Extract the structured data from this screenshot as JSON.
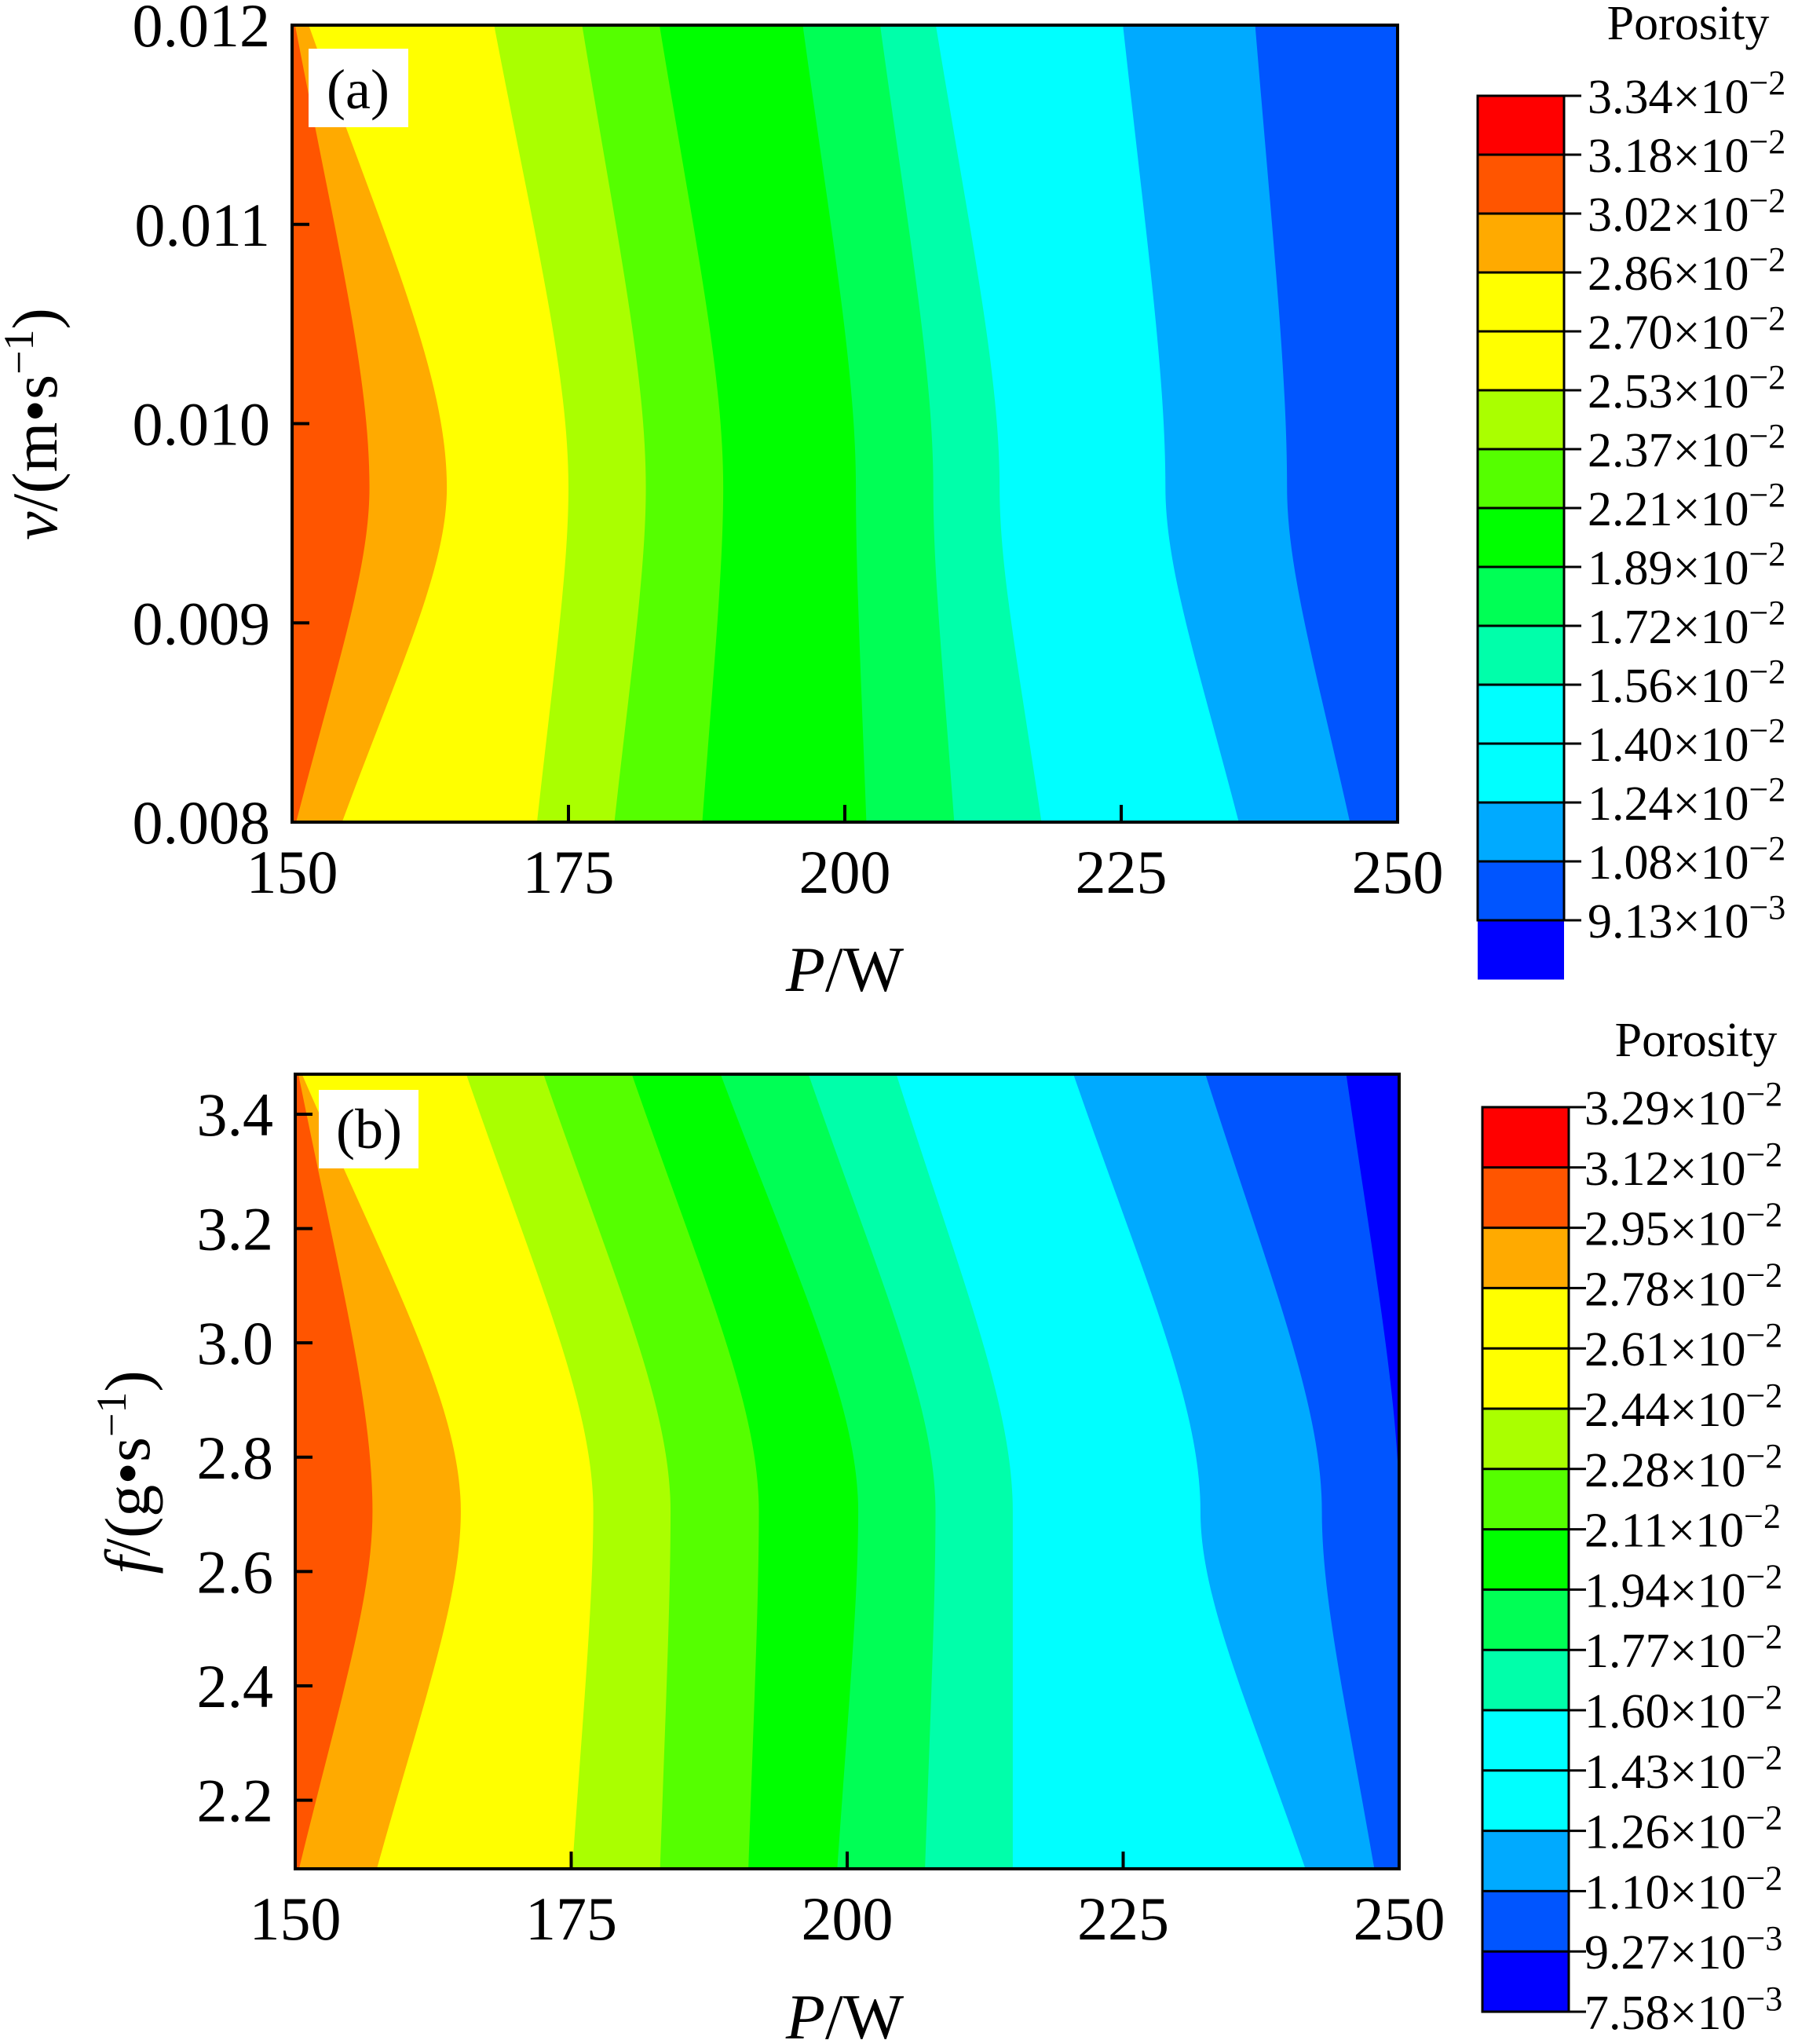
{
  "chart_data": [
    {
      "type": "contour",
      "panel_label": "(a)",
      "xlabel_italic": "P",
      "xlabel_unit": "/W",
      "ylabel": "v/(m•s⁻¹)",
      "ylabel_parts": {
        "var": "v",
        "open": "/(m•s",
        "sup": "−1",
        "close": ")"
      },
      "x_ticks": [
        "150",
        "175",
        "200",
        "225",
        "250"
      ],
      "x_tick_values": [
        150,
        175,
        200,
        225,
        250
      ],
      "xlim": [
        150,
        250
      ],
      "y_ticks": [
        "0.008",
        "0.009",
        "0.010",
        "0.011",
        "0.012"
      ],
      "y_tick_values": [
        0.008,
        0.009,
        0.01,
        0.011,
        0.012
      ],
      "ylim": [
        0.008,
        0.012
      ],
      "colorbar": {
        "title": "Porosity",
        "labels": [
          {
            "mant": "3.34",
            "exp": "−2"
          },
          {
            "mant": "3.18",
            "exp": "−2"
          },
          {
            "mant": "3.02",
            "exp": "−2"
          },
          {
            "mant": "2.86",
            "exp": "−2"
          },
          {
            "mant": "2.70",
            "exp": "−2"
          },
          {
            "mant": "2.53",
            "exp": "−2"
          },
          {
            "mant": "2.37",
            "exp": "−2"
          },
          {
            "mant": "2.21",
            "exp": "−2"
          },
          {
            "mant": "1.89",
            "exp": "−2"
          },
          {
            "mant": "1.72",
            "exp": "−2"
          },
          {
            "mant": "1.56",
            "exp": "−2"
          },
          {
            "mant": "1.40",
            "exp": "−2"
          },
          {
            "mant": "1.24",
            "exp": "−2"
          },
          {
            "mant": "1.08",
            "exp": "−2"
          },
          {
            "mant": "9.13",
            "exp": "−3"
          }
        ],
        "levels": [
          0.0334,
          0.0318,
          0.0302,
          0.0286,
          0.027,
          0.0253,
          0.0237,
          0.0221,
          0.0189,
          0.0172,
          0.0156,
          0.014,
          0.0124,
          0.0108,
          0.00913
        ],
        "colors": [
          "#ff0000",
          "#ff5500",
          "#ffaa00",
          "#ffff00",
          "#ffff00",
          "#aaff00",
          "#55ff00",
          "#00ff00",
          "#00ff55",
          "#00ffaa",
          "#00ffff",
          "#00ffff",
          "#00aaff",
          "#0055ff",
          "#0000ff"
        ]
      },
      "bands": [
        {
          "x_at_vmid": 150,
          "x_at_vtop": 150,
          "x_at_vbot": 150,
          "color": "#ff5500"
        },
        {
          "x_at_vmid": 157,
          "x_at_vtop": 150,
          "x_at_vbot": 150,
          "color": "#ffaa00"
        },
        {
          "x_at_vmid": 164,
          "x_at_vtop": 151,
          "x_at_vbot": 154,
          "color": "#ffff00"
        },
        {
          "x_at_vmid": 175,
          "x_at_vtop": 168,
          "x_at_vbot": 172,
          "color": "#aaff00"
        },
        {
          "x_at_vmid": 182,
          "x_at_vtop": 176,
          "x_at_vbot": 179,
          "color": "#55ff00"
        },
        {
          "x_at_vmid": 189,
          "x_at_vtop": 183,
          "x_at_vbot": 187,
          "color": "#00ff00"
        },
        {
          "x_at_vmid": 201,
          "x_at_vtop": 196,
          "x_at_vbot": 202,
          "color": "#00ff55"
        },
        {
          "x_at_vmid": 208,
          "x_at_vtop": 203,
          "x_at_vbot": 210,
          "color": "#00ffaa"
        },
        {
          "x_at_vmid": 214,
          "x_at_vtop": 208,
          "x_at_vbot": 218,
          "color": "#00ffff"
        },
        {
          "x_at_vmid": 229,
          "x_at_vtop": 225,
          "x_at_vbot": 236,
          "color": "#00aaff"
        },
        {
          "x_at_vmid": 240,
          "x_at_vtop": 237,
          "x_at_vbot": 246,
          "color": "#0055ff"
        },
        {
          "x_at_vmid": 250,
          "x_at_vtop": 250,
          "x_at_vbot": 251,
          "color": "#0000ff"
        }
      ]
    },
    {
      "type": "contour",
      "panel_label": "(b)",
      "xlabel_italic": "P",
      "xlabel_unit": "/W",
      "ylabel": "f/(g•s⁻¹)",
      "ylabel_parts": {
        "var": "f",
        "open": "/(g•s",
        "sup": "−1",
        "close": ")"
      },
      "x_ticks": [
        "150",
        "175",
        "200",
        "225",
        "250"
      ],
      "x_tick_values": [
        150,
        175,
        200,
        225,
        250
      ],
      "xlim": [
        150,
        250
      ],
      "y_ticks": [
        "2.2",
        "2.4",
        "2.6",
        "2.8",
        "3.0",
        "3.2",
        "3.4"
      ],
      "y_tick_values": [
        2.2,
        2.4,
        2.6,
        2.8,
        3.0,
        3.2,
        3.4
      ],
      "ylim": [
        2.08,
        3.47
      ],
      "colorbar": {
        "title": "Porosity",
        "labels": [
          {
            "mant": "3.29",
            "exp": "−2"
          },
          {
            "mant": "3.12",
            "exp": "−2"
          },
          {
            "mant": "2.95",
            "exp": "−2"
          },
          {
            "mant": "2.78",
            "exp": "−2"
          },
          {
            "mant": "2.61",
            "exp": "−2"
          },
          {
            "mant": "2.44",
            "exp": "−2"
          },
          {
            "mant": "2.28",
            "exp": "−2"
          },
          {
            "mant": "2.11",
            "exp": "−2"
          },
          {
            "mant": "1.94",
            "exp": "−2"
          },
          {
            "mant": "1.77",
            "exp": "−2"
          },
          {
            "mant": "1.60",
            "exp": "−2"
          },
          {
            "mant": "1.43",
            "exp": "−2"
          },
          {
            "mant": "1.26",
            "exp": "−2"
          },
          {
            "mant": "1.10",
            "exp": "−2"
          },
          {
            "mant": "9.27",
            "exp": "−3"
          },
          {
            "mant": "7.58",
            "exp": "−3"
          }
        ],
        "levels": [
          0.0329,
          0.0312,
          0.0295,
          0.0278,
          0.0261,
          0.0244,
          0.0228,
          0.0211,
          0.0194,
          0.0177,
          0.016,
          0.0143,
          0.0126,
          0.011,
          0.00927,
          0.00758
        ],
        "colors": [
          "#ff0000",
          "#ff5500",
          "#ffaa00",
          "#ffff00",
          "#ffff00",
          "#aaff00",
          "#55ff00",
          "#00ff00",
          "#00ff55",
          "#00ffaa",
          "#00ffff",
          "#00ffff",
          "#00aaff",
          "#0055ff",
          "#0000ff"
        ]
      },
      "bands": [
        {
          "x_at_vmid": 150,
          "x_at_vtop": 150,
          "x_at_vbot": 150,
          "color": "#ff5500"
        },
        {
          "x_at_vmid": 157,
          "x_at_vtop": 150,
          "x_at_vbot": 150,
          "color": "#ffaa00"
        },
        {
          "x_at_vmid": 165,
          "x_at_vtop": 150,
          "x_at_vbot": 157,
          "color": "#ffff00"
        },
        {
          "x_at_vmid": 177,
          "x_at_vtop": 165,
          "x_at_vbot": 175,
          "color": "#aaff00"
        },
        {
          "x_at_vmid": 184,
          "x_at_vtop": 172,
          "x_at_vbot": 183,
          "color": "#55ff00"
        },
        {
          "x_at_vmid": 192,
          "x_at_vtop": 180,
          "x_at_vbot": 191,
          "color": "#00ff00"
        },
        {
          "x_at_vmid": 201,
          "x_at_vtop": 188,
          "x_at_vbot": 199,
          "color": "#00ff55"
        },
        {
          "x_at_vmid": 208,
          "x_at_vtop": 196,
          "x_at_vbot": 207,
          "color": "#00ffaa"
        },
        {
          "x_at_vmid": 215,
          "x_at_vtop": 204,
          "x_at_vbot": 215,
          "color": "#00ffff"
        },
        {
          "x_at_vmid": 232,
          "x_at_vtop": 220,
          "x_at_vbot": 242,
          "color": "#00aaff"
        },
        {
          "x_at_vmid": 243,
          "x_at_vtop": 232,
          "x_at_vbot": 248,
          "color": "#0055ff"
        },
        {
          "x_at_vmid": 250,
          "x_at_vtop": 245,
          "x_at_vbot": 251,
          "color": "#0000ff"
        }
      ]
    }
  ]
}
